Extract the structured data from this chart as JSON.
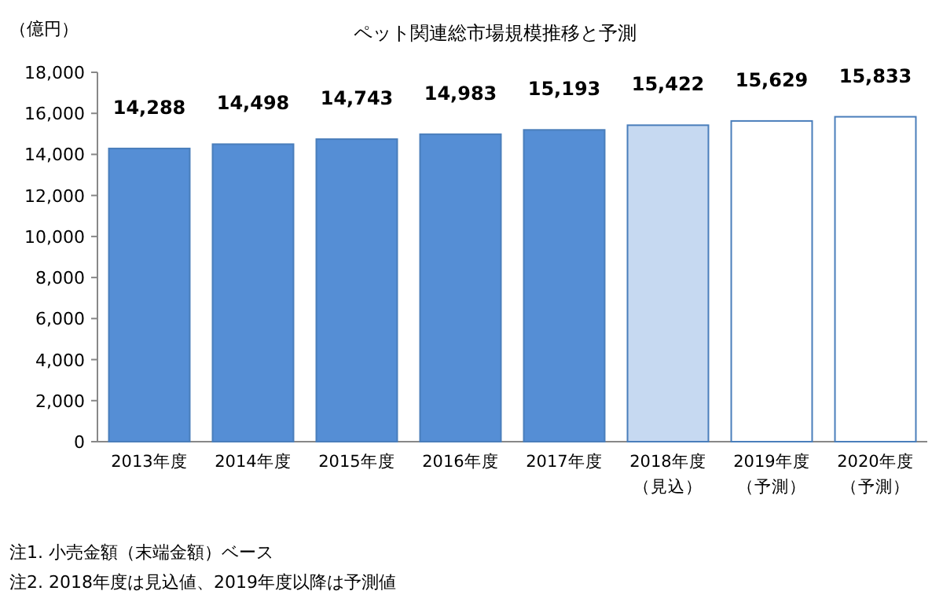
{
  "chart_data": {
    "type": "bar",
    "title": "ペット関連総市場規模推移と予測",
    "ylabel": "（億円）",
    "categories": [
      "2013年度",
      "2014年度",
      "2015年度",
      "2016年度",
      "2017年度",
      "2018年度（見込）",
      "2019年度（予測）",
      "2020年度（予測）"
    ],
    "values": [
      14288,
      14498,
      14743,
      14983,
      15193,
      15422,
      15629,
      15833
    ],
    "colors": [
      "#558ed5",
      "#558ed5",
      "#558ed5",
      "#558ed5",
      "#558ed5",
      "#c6d9f1",
      "#ffffff",
      "#ffffff"
    ],
    "ylim": [
      0,
      18000
    ],
    "yticks": [
      0,
      {
        "value": 2000,
        "label": "2,000"
      },
      {
        "value": 4000,
        "label": "4,000"
      },
      {
        "value": 6000,
        "label": "6,000"
      },
      {
        "value": 8000,
        "label": "8,000"
      },
      {
        "value": 10000,
        "label": "10,000"
      },
      {
        "value": 12000,
        "label": "12,000"
      },
      {
        "value": 14000,
        "label": "14,000"
      },
      {
        "value": 16000,
        "label": "16,000"
      },
      {
        "value": 18000,
        "label": "18,000"
      }
    ],
    "value_labels": [
      "14,288",
      "14,498",
      "14,743",
      "14,983",
      "15,193",
      "15,422",
      "15,629",
      "15,833"
    ],
    "annotations": [
      "注1. 小売金額（末端金額）ベース",
      "注2. 2018年度は見込値、2019年度以降は予測値"
    ]
  }
}
